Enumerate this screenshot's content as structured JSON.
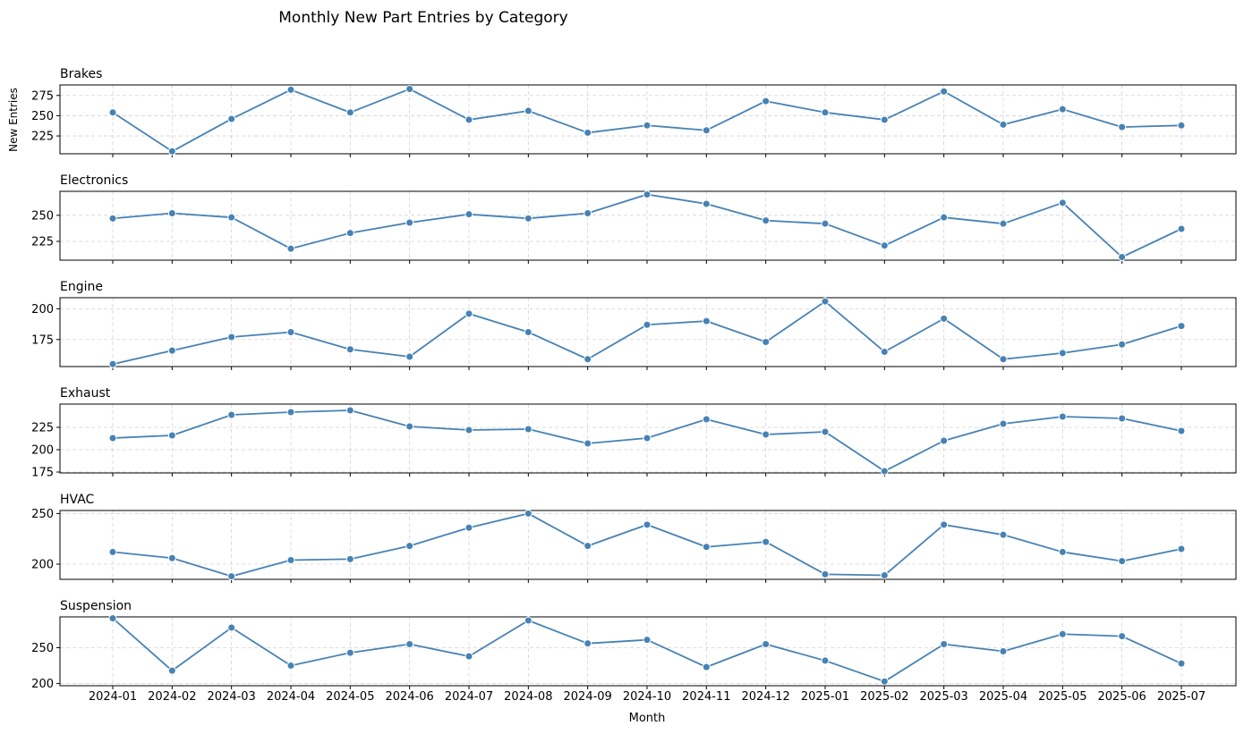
{
  "chart_data": {
    "type": "line",
    "title": "Monthly New Part Entries by Category",
    "xlabel": "Month",
    "ylabel": "New Entries",
    "grid": true,
    "color": "#4682b4",
    "x": [
      "2024-01",
      "2024-02",
      "2024-03",
      "2024-04",
      "2024-05",
      "2024-06",
      "2024-07",
      "2024-08",
      "2024-09",
      "2024-10",
      "2024-11",
      "2024-12",
      "2025-01",
      "2025-02",
      "2025-03",
      "2025-04",
      "2025-05",
      "2025-06",
      "2025-07"
    ],
    "panels": [
      {
        "name": "Brakes",
        "ylim": [
          203,
          288
        ],
        "yticks": [
          225,
          250,
          275
        ],
        "values": [
          254,
          206,
          246,
          282,
          254,
          283,
          245,
          256,
          229,
          238,
          232,
          268,
          254,
          245,
          280,
          239,
          258,
          236,
          238
        ]
      },
      {
        "name": "Electronics",
        "ylim": [
          207,
          273
        ],
        "yticks": [
          225,
          250
        ],
        "values": [
          247,
          252,
          248,
          218,
          233,
          243,
          251,
          247,
          252,
          270,
          261,
          245,
          242,
          221,
          248,
          242,
          262,
          210,
          237
        ]
      },
      {
        "name": "Engine",
        "ylim": [
          153,
          209
        ],
        "yticks": [
          175,
          200
        ],
        "values": [
          155,
          166,
          177,
          181,
          167,
          161,
          196,
          181,
          159,
          187,
          190,
          173,
          206,
          165,
          192,
          159,
          164,
          171,
          186
        ]
      },
      {
        "name": "Exhaust",
        "ylim": [
          174,
          251
        ],
        "yticks": [
          175,
          200,
          225
        ],
        "values": [
          213,
          216,
          239,
          242,
          244,
          226,
          222,
          223,
          207,
          213,
          234,
          217,
          220,
          176,
          210,
          229,
          237,
          235,
          221
        ]
      },
      {
        "name": "HVAC",
        "ylim": [
          185,
          253
        ],
        "yticks": [
          200,
          250
        ],
        "values": [
          212,
          206,
          188,
          204,
          205,
          218,
          236,
          250,
          218,
          239,
          217,
          222,
          190,
          189,
          239,
          229,
          212,
          203,
          215
        ]
      },
      {
        "name": "Suspension",
        "ylim": [
          197,
          293
        ],
        "yticks": [
          200,
          250
        ],
        "values": [
          291,
          218,
          278,
          225,
          243,
          255,
          238,
          288,
          256,
          261,
          223,
          255,
          232,
          203,
          255,
          245,
          269,
          266,
          228
        ]
      }
    ]
  }
}
